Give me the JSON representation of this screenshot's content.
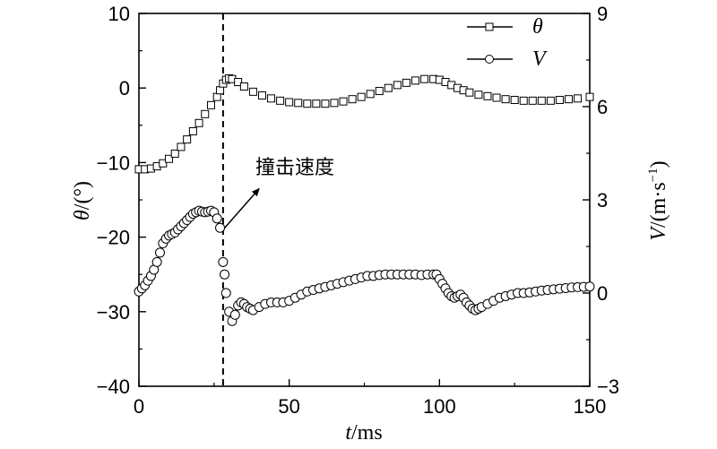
{
  "chart_data": {
    "type": "scatter",
    "x_axis": {
      "label_var": "t",
      "label_unit": "/ms",
      "range": [
        0,
        150
      ],
      "ticks": [
        "0",
        "50",
        "100",
        "150"
      ],
      "tick_values": [
        0,
        50,
        100,
        150
      ]
    },
    "y_left": {
      "label_var": "θ",
      "label_unit": "/(°)",
      "range": [
        -40,
        10
      ],
      "ticks": [
        "10",
        "0",
        "−10",
        "−20",
        "−30",
        "−40"
      ],
      "tick_values": [
        10,
        0,
        -10,
        -20,
        -30,
        -40
      ]
    },
    "y_right": {
      "label_var": "V",
      "label_unit": "/(m·s",
      "label_sup": "−1",
      "label_close": ")",
      "range": [
        -3,
        9
      ],
      "ticks": [
        "9",
        "6",
        "3",
        "0",
        "−3"
      ],
      "tick_values": [
        9,
        6,
        3,
        0,
        -3
      ]
    },
    "legend": {
      "placement": "top-right",
      "entries": [
        "θ",
        "V"
      ]
    },
    "impact_line_x": 28,
    "annotation": {
      "text": "撞击速度",
      "arrow_from": [
        28,
        -19
      ],
      "arrow_to": [
        40,
        -13.5
      ]
    },
    "series": [
      {
        "name": "θ",
        "axis": "left",
        "marker": "square",
        "x": [
          0,
          2,
          4,
          6,
          8,
          10,
          12,
          14,
          16,
          18,
          20,
          22,
          24,
          26,
          27,
          28,
          29,
          30,
          31,
          33,
          35,
          38,
          41,
          44,
          47,
          50,
          53,
          56,
          59,
          62,
          65,
          68,
          71,
          74,
          77,
          80,
          83,
          86,
          89,
          92,
          95,
          98,
          100,
          102,
          104,
          106,
          108,
          110,
          113,
          116,
          119,
          122,
          125,
          128,
          131,
          134,
          137,
          140,
          143,
          146,
          150
        ],
        "values": [
          -10.9,
          -10.9,
          -10.8,
          -10.5,
          -10.1,
          -9.5,
          -8.8,
          -7.9,
          -6.9,
          -5.8,
          -4.7,
          -3.5,
          -2.3,
          -1.2,
          -0.3,
          0.6,
          1.1,
          1.3,
          1.2,
          0.8,
          0.2,
          -0.5,
          -1.0,
          -1.4,
          -1.7,
          -1.9,
          -2.0,
          -2.1,
          -2.1,
          -2.1,
          -2.0,
          -1.8,
          -1.5,
          -1.2,
          -0.8,
          -0.4,
          0.0,
          0.4,
          0.7,
          1.0,
          1.2,
          1.2,
          1.1,
          0.8,
          0.4,
          0.0,
          -0.3,
          -0.6,
          -0.9,
          -1.1,
          -1.3,
          -1.5,
          -1.6,
          -1.7,
          -1.7,
          -1.7,
          -1.7,
          -1.6,
          -1.5,
          -1.4,
          -1.2
        ]
      },
      {
        "name": "V",
        "axis": "right",
        "marker": "circle",
        "x": [
          0,
          1,
          2,
          3,
          4,
          5,
          6,
          7,
          8,
          9,
          10,
          11,
          12,
          13,
          14,
          15,
          16,
          17,
          18,
          19,
          20,
          21,
          22,
          23,
          24,
          25,
          26,
          27,
          28,
          28.5,
          29,
          30,
          31,
          32,
          33,
          34,
          35,
          36,
          37,
          38,
          40,
          42,
          44,
          46,
          48,
          50,
          52,
          54,
          56,
          58,
          60,
          62,
          64,
          66,
          68,
          70,
          72,
          74,
          76,
          78,
          80,
          82,
          84,
          86,
          88,
          90,
          92,
          94,
          96,
          98,
          99,
          100,
          101,
          102,
          103,
          104,
          105,
          106,
          107,
          108,
          109,
          110,
          111,
          112,
          113,
          114,
          116,
          118,
          120,
          122,
          124,
          126,
          128,
          130,
          132,
          134,
          136,
          138,
          140,
          142,
          144,
          146,
          148,
          150
        ],
        "values": [
          0.05,
          0.15,
          0.25,
          0.4,
          0.55,
          0.75,
          1.0,
          1.3,
          1.6,
          1.75,
          1.85,
          1.9,
          1.95,
          2.05,
          2.15,
          2.25,
          2.35,
          2.45,
          2.55,
          2.6,
          2.65,
          2.62,
          2.6,
          2.62,
          2.65,
          2.6,
          2.4,
          2.1,
          1.0,
          0.6,
          0.0,
          -0.6,
          -0.9,
          -0.7,
          -0.4,
          -0.3,
          -0.35,
          -0.45,
          -0.5,
          -0.55,
          -0.45,
          -0.35,
          -0.3,
          -0.3,
          -0.3,
          -0.25,
          -0.15,
          -0.05,
          0.05,
          0.1,
          0.15,
          0.2,
          0.25,
          0.3,
          0.35,
          0.4,
          0.45,
          0.5,
          0.55,
          0.55,
          0.58,
          0.6,
          0.6,
          0.6,
          0.6,
          0.6,
          0.6,
          0.58,
          0.6,
          0.6,
          0.6,
          0.45,
          0.3,
          0.15,
          0.0,
          -0.1,
          -0.15,
          -0.1,
          -0.05,
          -0.15,
          -0.3,
          -0.4,
          -0.5,
          -0.55,
          -0.5,
          -0.45,
          -0.35,
          -0.25,
          -0.15,
          -0.1,
          -0.05,
          0.0,
          0.0,
          0.02,
          0.05,
          0.08,
          0.1,
          0.12,
          0.14,
          0.16,
          0.18,
          0.19,
          0.2,
          0.21
        ]
      }
    ]
  }
}
